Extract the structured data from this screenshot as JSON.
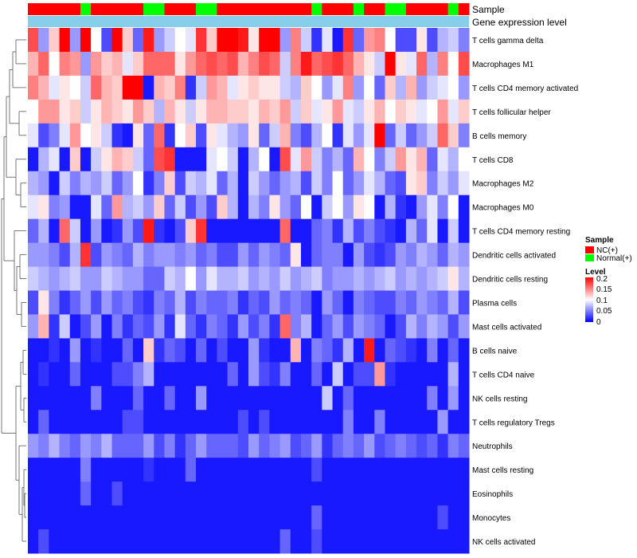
{
  "chart_data": {
    "type": "heatmap",
    "annotation_rows": [
      "Sample",
      "Gene expression level"
    ],
    "rows": [
      "T cells gamma delta",
      "Macrophages M1",
      "T cells CD4 memory activated",
      "T cells follicular helper",
      "B cells memory",
      "T cells CD8",
      "Macrophages M2",
      "Macrophages M0",
      "T cells CD4 memory resting",
      "Dendritic cells activated",
      "Dendritic cells resting",
      "Plasma cells",
      "Mast cells activated",
      "B cells naive",
      "T cells CD4 naive",
      "NK cells resting",
      "T cells regulatory  Tregs",
      "Neutrophils",
      "Mast cells resting",
      "Eosinophils",
      "Monocytes",
      "NK cells activated"
    ],
    "sample_groups": [
      "NC",
      "NC",
      "NC",
      "NC",
      "NC",
      "Normal",
      "NC",
      "NC",
      "NC",
      "NC",
      "NC",
      "Normal",
      "Normal",
      "NC",
      "NC",
      "NC",
      "Normal",
      "Normal",
      "NC",
      "NC",
      "NC",
      "NC",
      "NC",
      "NC",
      "NC",
      "NC",
      "NC",
      "Normal",
      "NC",
      "NC",
      "NC",
      "Normal",
      "NC",
      "NC",
      "Normal",
      "Normal",
      "NC",
      "NC",
      "NC",
      "NC",
      "Normal",
      "NC"
    ],
    "colorscale": {
      "min": 0,
      "mid": 0.1,
      "max": 0.2,
      "low_color": "#0000ff",
      "mid_color": "#ffffff",
      "high_color": "#ff0000"
    },
    "values": [
      [
        0.17,
        0.06,
        0.12,
        0.2,
        0.06,
        0.2,
        0.1,
        0.03,
        0.2,
        0.12,
        0.04,
        0.19,
        0.06,
        0.08,
        0.1,
        0.09,
        0.18,
        0.12,
        0.2,
        0.2,
        0.19,
        0.11,
        0.2,
        0.2,
        0.06,
        0.15,
        0.08,
        0.02,
        0.09,
        0.01,
        0.18,
        0.04,
        0.14,
        0.15,
        0.1,
        0.03,
        0.03,
        0.11,
        0.03,
        0.07,
        0.08,
        0.05
      ],
      [
        0.13,
        0.16,
        0.1,
        0.15,
        0.14,
        0.06,
        0.14,
        0.12,
        0.13,
        0.09,
        0.12,
        0.16,
        0.16,
        0.16,
        0.11,
        0.14,
        0.16,
        0.17,
        0.16,
        0.17,
        0.13,
        0.15,
        0.17,
        0.16,
        0.08,
        0.15,
        0.19,
        0.16,
        0.17,
        0.18,
        0.16,
        0.13,
        0.11,
        0.08,
        0.2,
        0.11,
        0.09,
        0.16,
        0.07,
        0.15,
        0.1,
        0.17
      ],
      [
        0.15,
        0.13,
        0.09,
        0.11,
        0.1,
        0.08,
        0.16,
        0.13,
        0.12,
        0.2,
        0.2,
        0.01,
        0.13,
        0.12,
        0.15,
        0.02,
        0.08,
        0.14,
        0.13,
        0.09,
        0.11,
        0.12,
        0.11,
        0.11,
        0.08,
        0.07,
        0.12,
        0.1,
        0.06,
        0.09,
        0.15,
        0.06,
        0.1,
        0.04,
        0.12,
        0.07,
        0.13,
        0.06,
        0.08,
        0.09,
        0.1,
        0.06
      ],
      [
        0.1,
        0.14,
        0.14,
        0.11,
        0.12,
        0.08,
        0.11,
        0.13,
        0.12,
        0.11,
        0.14,
        0.12,
        0.07,
        0.13,
        0.11,
        0.08,
        0.11,
        0.13,
        0.13,
        0.12,
        0.12,
        0.11,
        0.13,
        0.12,
        0.14,
        0.08,
        0.12,
        0.09,
        0.11,
        0.14,
        0.09,
        0.08,
        0.11,
        0.13,
        0.1,
        0.12,
        0.11,
        0.09,
        0.1,
        0.14,
        0.09,
        0.12
      ],
      [
        0.09,
        0.03,
        0.05,
        0.09,
        0.14,
        0.1,
        0.11,
        0.08,
        0.02,
        0.01,
        0.11,
        0.04,
        0.16,
        0.02,
        0.1,
        0.12,
        0.03,
        0.11,
        0.09,
        0.07,
        0.06,
        0.11,
        0.04,
        0.08,
        0.13,
        0.05,
        0.03,
        0.07,
        0.1,
        0.02,
        0.09,
        0.06,
        0.09,
        0.2,
        0.04,
        0.08,
        0.04,
        0.06,
        0.08,
        0.16,
        0.12,
        0.05
      ],
      [
        0.01,
        0.07,
        0.09,
        0.01,
        0.12,
        0.01,
        0.08,
        0.11,
        0.13,
        0.12,
        0.08,
        0.04,
        0.17,
        0.18,
        0.01,
        0.01,
        0.01,
        0.09,
        0.1,
        0.08,
        0.01,
        0.07,
        0.1,
        0.01,
        0.17,
        0.09,
        0.14,
        0.08,
        0.05,
        0.07,
        0.04,
        0.13,
        0.1,
        0.05,
        0.08,
        0.14,
        0.11,
        0.13,
        0.04,
        0.09,
        0.07,
        0.1
      ],
      [
        0.07,
        0.06,
        0.01,
        0.08,
        0.05,
        0.07,
        0.06,
        0.08,
        0.04,
        0.06,
        0.1,
        0.02,
        0.05,
        0.12,
        0.03,
        0.08,
        0.07,
        0.09,
        0.04,
        0.07,
        0.01,
        0.08,
        0.06,
        0.04,
        0.06,
        0.07,
        0.03,
        0.08,
        0.05,
        0.1,
        0.04,
        0.06,
        0.09,
        0.07,
        0.04,
        0.03,
        0.11,
        0.12,
        0.05,
        0.08,
        0.06,
        0.09
      ],
      [
        0.09,
        0.11,
        0.05,
        0.06,
        0.01,
        0.01,
        0.09,
        0.04,
        0.14,
        0.07,
        0.08,
        0.06,
        0.12,
        0.04,
        0.08,
        0.03,
        0.06,
        0.03,
        0.12,
        0.07,
        0.01,
        0.07,
        0.05,
        0.11,
        0.06,
        0.04,
        0.1,
        0.01,
        0.08,
        0.1,
        0.06,
        0.11,
        0.1,
        0.01,
        0.07,
        0.02,
        0.01,
        0.06,
        0.09,
        0.05,
        0.1,
        0.01
      ],
      [
        0.04,
        0.07,
        0.01,
        0.16,
        0.08,
        0.01,
        0.06,
        0.01,
        0.02,
        0.06,
        0.03,
        0.19,
        0.02,
        0.01,
        0.03,
        0.12,
        0.18,
        0.01,
        0.01,
        0.01,
        0.01,
        0.01,
        0.01,
        0.01,
        0.16,
        0.01,
        0.01,
        0.04,
        0.05,
        0.02,
        0.07,
        0.03,
        0.05,
        0.03,
        0.02,
        0.01,
        0.07,
        0.04,
        0.09,
        0.01,
        0.08,
        0.01
      ],
      [
        0.06,
        0.06,
        0.05,
        0.03,
        0.07,
        0.18,
        0.03,
        0.06,
        0.05,
        0.04,
        0.07,
        0.05,
        0.06,
        0.06,
        0.05,
        0.06,
        0.04,
        0.05,
        0.03,
        0.03,
        0.06,
        0.04,
        0.06,
        0.05,
        0.04,
        0.11,
        0.01,
        0.04,
        0.05,
        0.05,
        0.01,
        0.06,
        0.03,
        0.02,
        0.03,
        0.06,
        0.05,
        0.07,
        0.06,
        0.04,
        0.07,
        0.06
      ],
      [
        0.08,
        0.07,
        0.06,
        0.07,
        0.08,
        0.06,
        0.06,
        0.08,
        0.07,
        0.06,
        0.06,
        0.04,
        0.04,
        0.08,
        0.07,
        0.1,
        0.06,
        0.09,
        0.07,
        0.07,
        0.08,
        0.06,
        0.07,
        0.06,
        0.08,
        0.06,
        0.07,
        0.08,
        0.05,
        0.06,
        0.06,
        0.07,
        0.06,
        0.07,
        0.08,
        0.06,
        0.07,
        0.06,
        0.07,
        0.08,
        0.11,
        0.07
      ],
      [
        0.03,
        0.11,
        0.05,
        0.02,
        0.04,
        0.06,
        0.03,
        0.06,
        0.04,
        0.05,
        0.03,
        0.02,
        0.05,
        0.04,
        0.07,
        0.03,
        0.05,
        0.04,
        0.04,
        0.05,
        0.02,
        0.04,
        0.03,
        0.06,
        0.04,
        0.05,
        0.04,
        0.01,
        0.06,
        0.04,
        0.01,
        0.05,
        0.04,
        0.03,
        0.03,
        0.05,
        0.04,
        0.06,
        0.05,
        0.04,
        0.07,
        0.03
      ],
      [
        0.06,
        0.13,
        0.02,
        0.08,
        0.01,
        0.03,
        0.06,
        0.01,
        0.05,
        0.02,
        0.04,
        0.03,
        0.06,
        0.02,
        0.09,
        0.04,
        0.02,
        0.05,
        0.04,
        0.02,
        0.06,
        0.03,
        0.05,
        0.02,
        0.16,
        0.05,
        0.07,
        0.01,
        0.04,
        0.06,
        0.03,
        0.06,
        0.05,
        0.04,
        0.01,
        0.03,
        0.07,
        0.05,
        0.07,
        0.06,
        0.03,
        0.06
      ],
      [
        0.01,
        0.01,
        0.02,
        0.01,
        0.06,
        0.01,
        0.02,
        0.01,
        0.01,
        0.04,
        0.01,
        0.12,
        0.02,
        0.04,
        0.03,
        0.01,
        0.04,
        0.01,
        0.03,
        0.01,
        0.01,
        0.06,
        0.02,
        0.01,
        0.01,
        0.13,
        0.01,
        0.05,
        0.04,
        0.02,
        0.07,
        0.01,
        0.19,
        0.01,
        0.04,
        0.03,
        0.02,
        0.01,
        0.05,
        0.01,
        0.04,
        0.01
      ],
      [
        0.01,
        0.02,
        0.01,
        0.01,
        0.04,
        0.01,
        0.01,
        0.01,
        0.03,
        0.03,
        0.05,
        0.07,
        0.01,
        0.01,
        0.01,
        0.01,
        0.01,
        0.01,
        0.01,
        0.04,
        0.01,
        0.06,
        0.03,
        0.02,
        0.05,
        0.01,
        0.01,
        0.04,
        0.01,
        0.08,
        0.01,
        0.03,
        0.03,
        0.14,
        0.02,
        0.01,
        0.01,
        0.01,
        0.01,
        0.01,
        0.07,
        0.01
      ],
      [
        0.01,
        0.01,
        0.01,
        0.01,
        0.01,
        0.01,
        0.05,
        0.01,
        0.01,
        0.01,
        0.04,
        0.01,
        0.01,
        0.04,
        0.01,
        0.01,
        0.06,
        0.01,
        0.01,
        0.01,
        0.01,
        0.01,
        0.01,
        0.01,
        0.01,
        0.01,
        0.01,
        0.01,
        0.08,
        0.01,
        0.04,
        0.01,
        0.01,
        0.01,
        0.01,
        0.01,
        0.01,
        0.01,
        0.05,
        0.01,
        0.06,
        0.01
      ],
      [
        0.01,
        0.04,
        0.01,
        0.01,
        0.01,
        0.01,
        0.01,
        0.01,
        0.01,
        0.03,
        0.03,
        0.01,
        0.01,
        0.01,
        0.01,
        0.01,
        0.01,
        0.01,
        0.01,
        0.01,
        0.03,
        0.01,
        0.03,
        0.01,
        0.01,
        0.01,
        0.01,
        0.01,
        0.01,
        0.01,
        0.05,
        0.01,
        0.01,
        0.05,
        0.01,
        0.01,
        0.01,
        0.01,
        0.01,
        0.06,
        0.01,
        0.01
      ],
      [
        0.06,
        0.05,
        0.07,
        0.05,
        0.04,
        0.06,
        0.05,
        0.07,
        0.04,
        0.04,
        0.04,
        0.06,
        0.03,
        0.05,
        0.02,
        0.04,
        0.06,
        0.04,
        0.04,
        0.04,
        0.03,
        0.06,
        0.04,
        0.05,
        0.06,
        0.03,
        0.04,
        0.06,
        0.02,
        0.04,
        0.05,
        0.04,
        0.06,
        0.03,
        0.04,
        0.05,
        0.04,
        0.03,
        0.04,
        0.02,
        0.05,
        0.04
      ],
      [
        0.01,
        0.01,
        0.01,
        0.01,
        0.01,
        0.05,
        0.01,
        0.01,
        0.01,
        0.01,
        0.01,
        0.02,
        0.01,
        0.01,
        0.01,
        0.04,
        0.01,
        0.01,
        0.01,
        0.01,
        0.01,
        0.01,
        0.01,
        0.01,
        0.01,
        0.01,
        0.01,
        0.03,
        0.01,
        0.01,
        0.01,
        0.01,
        0.01,
        0.01,
        0.01,
        0.01,
        0.01,
        0.01,
        0.01,
        0.01,
        0.01,
        0.01
      ],
      [
        0.01,
        0.01,
        0.01,
        0.01,
        0.01,
        0.04,
        0.01,
        0.01,
        0.03,
        0.01,
        0.01,
        0.01,
        0.01,
        0.01,
        0.01,
        0.01,
        0.01,
        0.01,
        0.01,
        0.01,
        0.01,
        0.01,
        0.01,
        0.01,
        0.01,
        0.01,
        0.01,
        0.01,
        0.01,
        0.01,
        0.01,
        0.01,
        0.01,
        0.01,
        0.01,
        0.01,
        0.01,
        0.01,
        0.01,
        0.01,
        0.01,
        0.01
      ],
      [
        0.01,
        0.01,
        0.01,
        0.01,
        0.01,
        0.01,
        0.01,
        0.01,
        0.01,
        0.01,
        0.01,
        0.01,
        0.01,
        0.01,
        0.01,
        0.01,
        0.01,
        0.01,
        0.01,
        0.01,
        0.01,
        0.01,
        0.01,
        0.01,
        0.01,
        0.01,
        0.01,
        0.04,
        0.01,
        0.01,
        0.01,
        0.01,
        0.01,
        0.01,
        0.01,
        0.01,
        0.01,
        0.01,
        0.01,
        0.03,
        0.01,
        0.01
      ],
      [
        0.01,
        0.03,
        0.01,
        0.01,
        0.01,
        0.01,
        0.01,
        0.01,
        0.01,
        0.01,
        0.01,
        0.01,
        0.01,
        0.01,
        0.01,
        0.01,
        0.01,
        0.01,
        0.01,
        0.01,
        0.01,
        0.01,
        0.01,
        0.01,
        0.04,
        0.01,
        0.01,
        0.03,
        0.01,
        0.01,
        0.01,
        0.01,
        0.01,
        0.01,
        0.01,
        0.01,
        0.01,
        0.01,
        0.01,
        0.01,
        0.01,
        0.01
      ]
    ],
    "legend": {
      "sample_title": "Sample",
      "sample_entries": [
        {
          "label": "NC(+)",
          "color": "#ff0000"
        },
        {
          "label": "Normal(+)",
          "color": "#00ff00"
        }
      ],
      "level_title": "Level",
      "level_ticks": [
        "0.2",
        "0.15",
        "0.1",
        "0.05",
        "0"
      ],
      "placement": "right"
    },
    "gene_expression_color": "#87ceeb"
  }
}
